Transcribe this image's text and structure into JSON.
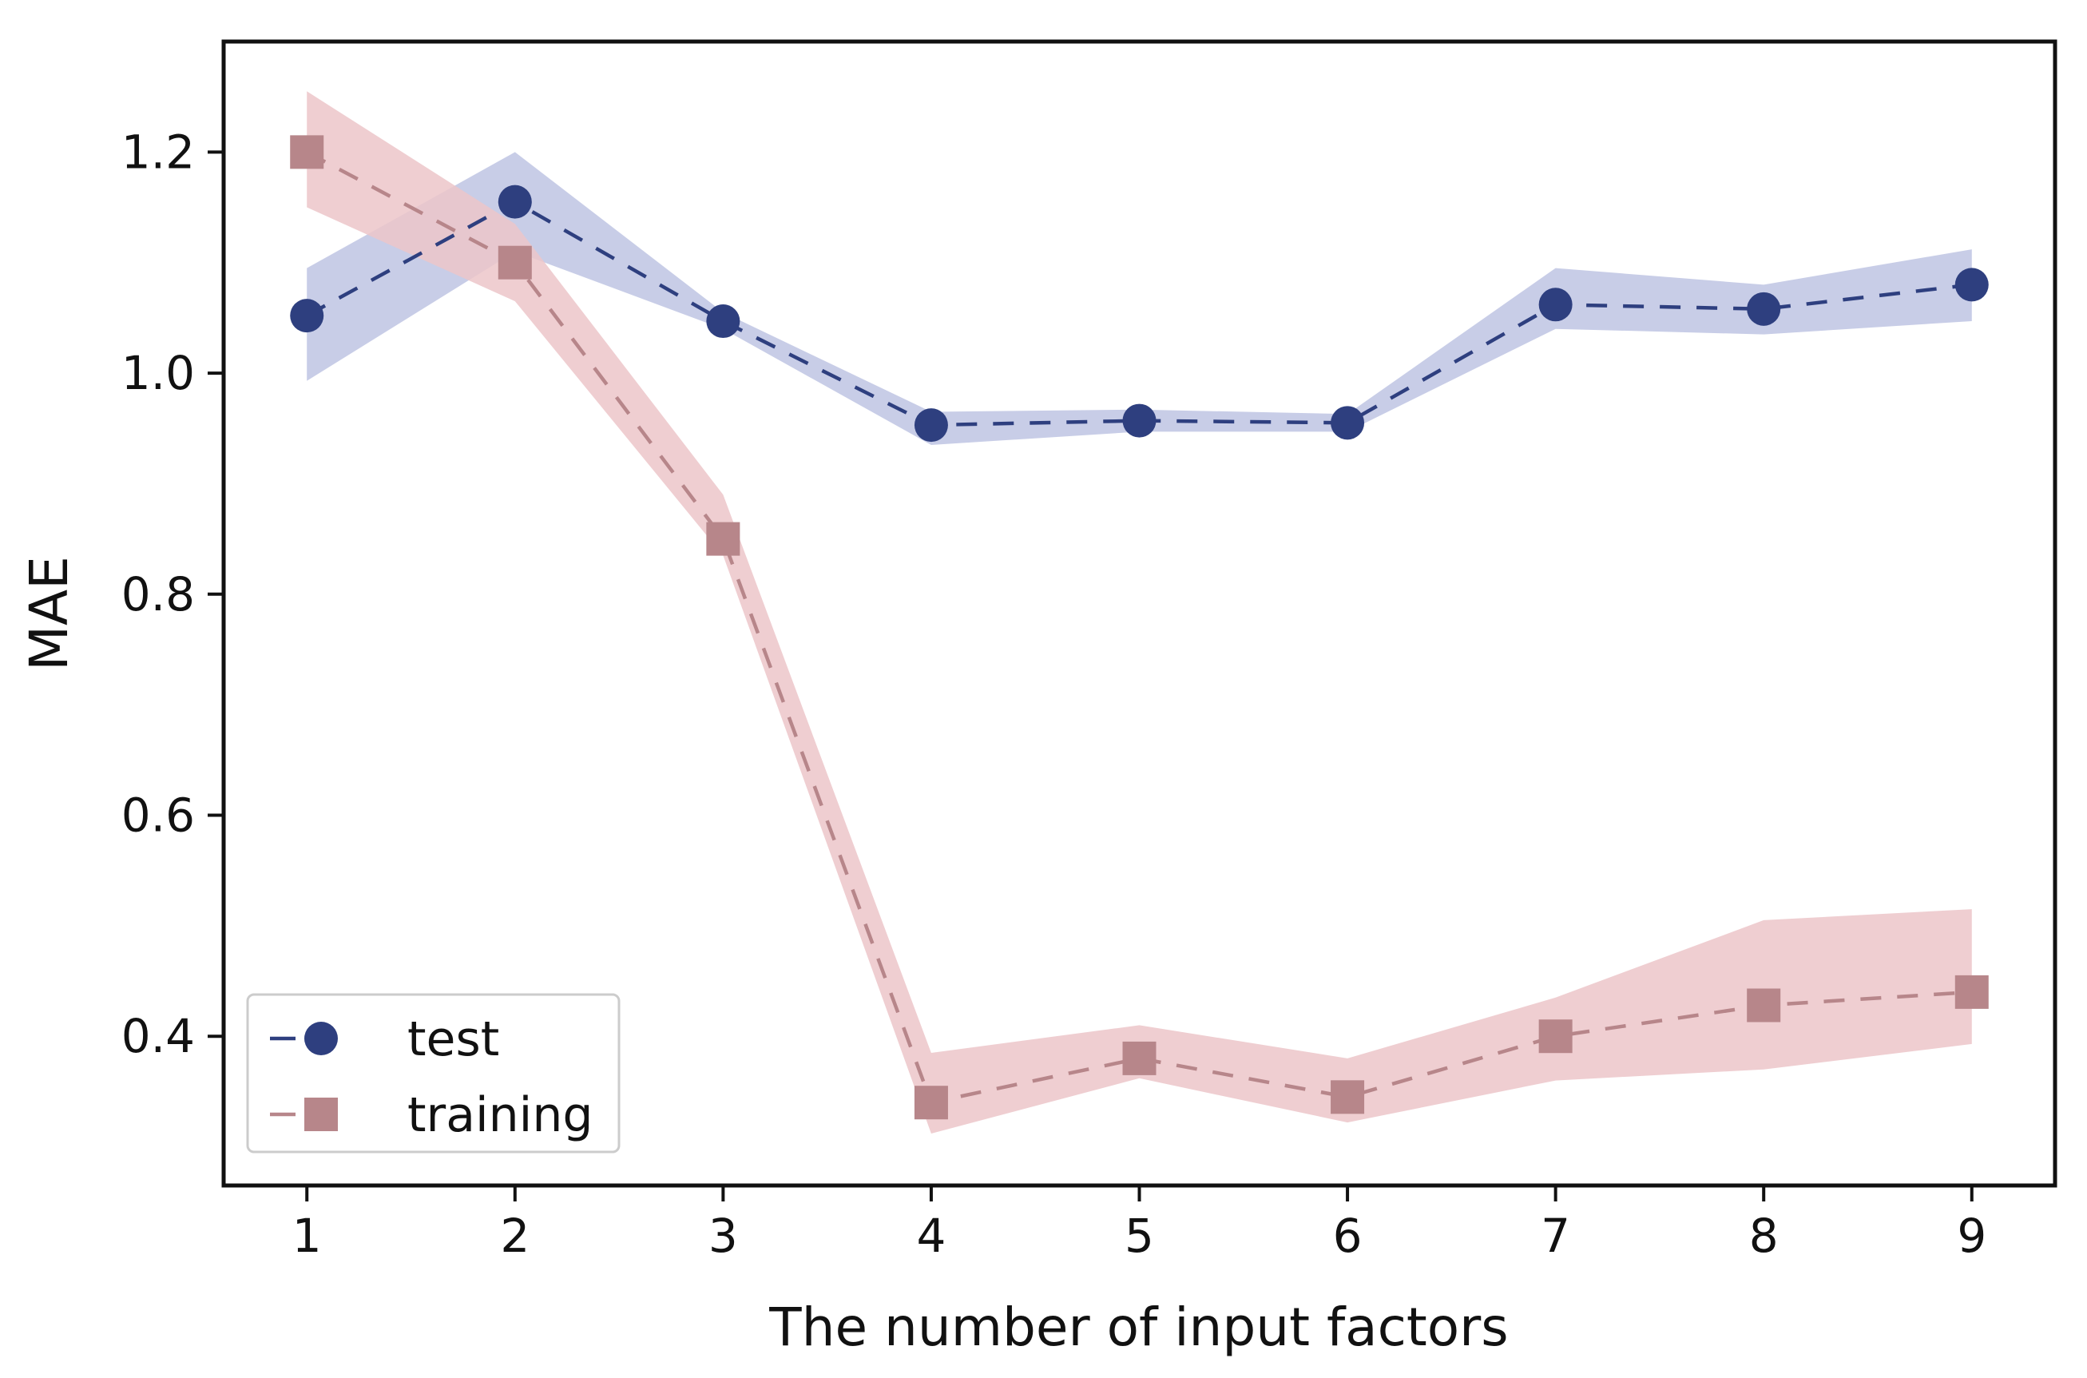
{
  "chart_data": {
    "type": "line",
    "title": "",
    "xlabel": "The number of input factors",
    "ylabel": "MAE",
    "x": [
      1,
      2,
      3,
      4,
      5,
      6,
      7,
      8,
      9
    ],
    "xlim": [
      0.6,
      9.4
    ],
    "ylim": [
      0.265,
      1.3
    ],
    "xticks": [
      1,
      2,
      3,
      4,
      5,
      6,
      7,
      8,
      9
    ],
    "yticks": [
      0.4,
      0.6,
      0.8,
      1.0,
      1.2
    ],
    "ytick_labels": [
      "0.4",
      "0.6",
      "0.8",
      "1.0",
      "1.2"
    ],
    "grid": false,
    "legend_position": "lower-left",
    "series": [
      {
        "name": "test",
        "marker": "circle",
        "line_style": "dashed",
        "color": "#2e3f7f",
        "band_color": "#c5cae6",
        "values": [
          1.052,
          1.155,
          1.047,
          0.953,
          0.957,
          0.955,
          1.062,
          1.058,
          1.08
        ],
        "lower": [
          0.993,
          1.11,
          1.04,
          0.935,
          0.947,
          0.947,
          1.04,
          1.035,
          1.047
        ],
        "upper": [
          1.095,
          1.2,
          1.055,
          0.965,
          0.967,
          0.963,
          1.095,
          1.08,
          1.112
        ]
      },
      {
        "name": "training",
        "marker": "square",
        "line_style": "dashed",
        "color": "#b7868a",
        "band_color": "#ecc6c9",
        "values": [
          1.2,
          1.1,
          0.85,
          0.34,
          0.38,
          0.345,
          0.4,
          0.428,
          0.44
        ],
        "lower": [
          1.15,
          1.065,
          0.835,
          0.312,
          0.362,
          0.322,
          0.36,
          0.37,
          0.393
        ],
        "upper": [
          1.255,
          1.135,
          0.89,
          0.385,
          0.41,
          0.38,
          0.435,
          0.505,
          0.515
        ]
      }
    ]
  }
}
